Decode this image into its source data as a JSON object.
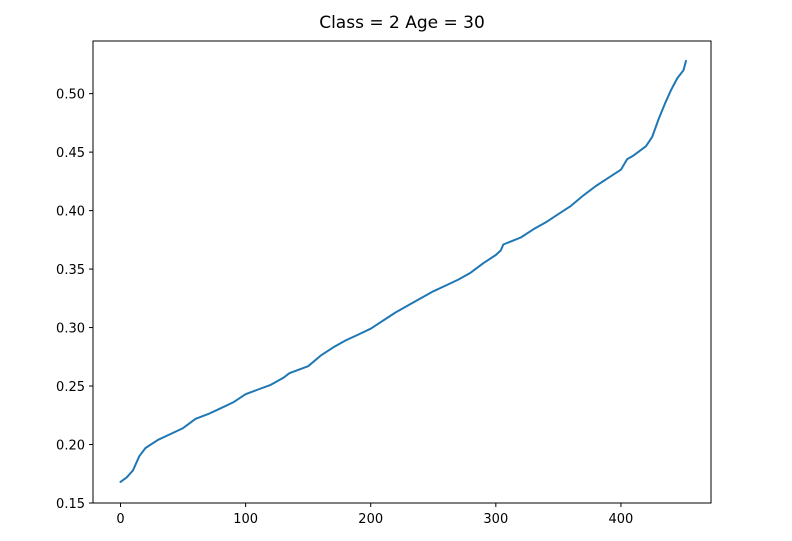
{
  "chart_data": {
    "type": "line",
    "title": "Class = 2 Age = 30",
    "xlabel": "",
    "ylabel": "",
    "xlim": [
      -22,
      472
    ],
    "ylim": [
      0.15,
      0.545
    ],
    "xticks": [
      0,
      100,
      200,
      300,
      400
    ],
    "xtick_labels": [
      "0",
      "100",
      "200",
      "300",
      "400"
    ],
    "yticks": [
      0.15,
      0.2,
      0.25,
      0.3,
      0.35,
      0.4,
      0.45,
      0.5
    ],
    "ytick_labels": [
      "0.15",
      "0.20",
      "0.25",
      "0.30",
      "0.35",
      "0.40",
      "0.45",
      "0.50"
    ],
    "grid": false,
    "series": [
      {
        "color": "#1f77b4",
        "x": [
          0,
          5,
          10,
          15,
          20,
          30,
          40,
          50,
          60,
          70,
          80,
          90,
          100,
          110,
          120,
          130,
          135,
          150,
          160,
          170,
          180,
          190,
          200,
          210,
          220,
          230,
          240,
          250,
          260,
          270,
          280,
          290,
          300,
          304,
          306,
          320,
          330,
          340,
          350,
          360,
          370,
          380,
          390,
          400,
          405,
          410,
          420,
          425,
          430,
          435,
          440,
          445,
          450,
          452
        ],
        "y": [
          0.168,
          0.172,
          0.178,
          0.19,
          0.197,
          0.204,
          0.209,
          0.214,
          0.222,
          0.226,
          0.231,
          0.236,
          0.243,
          0.247,
          0.251,
          0.257,
          0.261,
          0.267,
          0.276,
          0.283,
          0.289,
          0.294,
          0.299,
          0.306,
          0.313,
          0.319,
          0.325,
          0.331,
          0.336,
          0.341,
          0.347,
          0.355,
          0.362,
          0.366,
          0.371,
          0.377,
          0.384,
          0.39,
          0.397,
          0.404,
          0.413,
          0.421,
          0.428,
          0.435,
          0.444,
          0.447,
          0.455,
          0.463,
          0.478,
          0.491,
          0.503,
          0.513,
          0.52,
          0.528
        ]
      }
    ]
  }
}
